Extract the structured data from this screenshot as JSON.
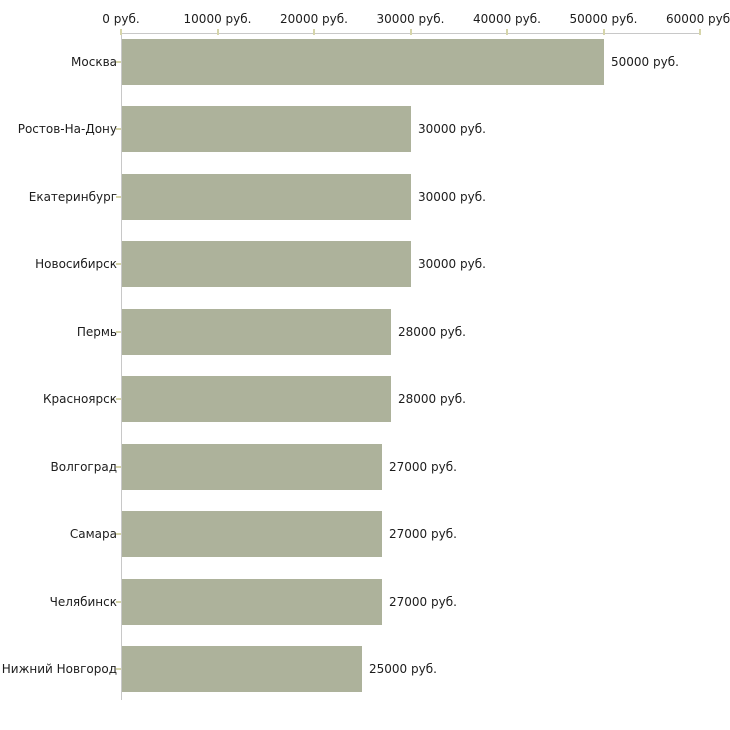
{
  "chart_data": {
    "type": "bar",
    "orientation": "horizontal",
    "title": "",
    "categories": [
      "Москва",
      "Ростов-На-Дону",
      "Екатеринбург",
      "Новосибирск",
      "Пермь",
      "Красноярск",
      "Волгоград",
      "Самара",
      "Челябинск",
      "Нижний Новгород"
    ],
    "values": [
      50000,
      30000,
      30000,
      30000,
      28000,
      28000,
      27000,
      27000,
      27000,
      25000
    ],
    "value_labels": [
      "50000 руб.",
      "30000 руб.",
      "30000 руб.",
      "30000 руб.",
      "28000 руб.",
      "28000 руб.",
      "27000 руб.",
      "27000 руб.",
      "27000 руб.",
      "25000 руб."
    ],
    "unit": "руб.",
    "xlabel": "",
    "ylabel": "",
    "xlim": [
      0,
      60000
    ],
    "x_ticks": [
      0,
      10000,
      20000,
      30000,
      40000,
      50000,
      60000
    ],
    "x_tick_labels": [
      "0 руб.",
      "10000 руб.",
      "20000 руб.",
      "30000 руб.",
      "40000 руб.",
      "50000 руб.",
      "60000 руб."
    ],
    "grid": "off",
    "legend": "none",
    "colors": {
      "bar": "#adb29b",
      "axis_line": "#c8c8c8",
      "tick_mark": "#d6d5aa",
      "text": "#1c1c1c",
      "background": "#ffffff"
    }
  }
}
